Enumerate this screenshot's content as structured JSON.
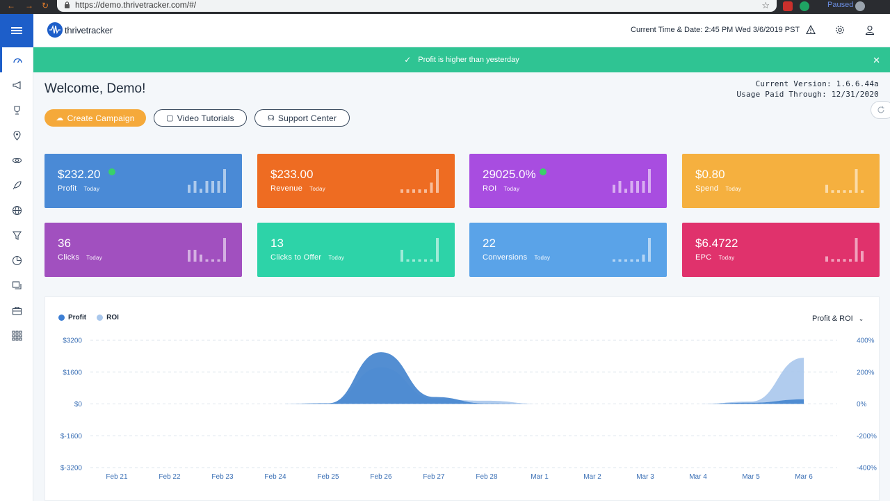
{
  "browser": {
    "url": "https://demo.thrivetracker.com/#/",
    "paused": "Paused"
  },
  "header": {
    "logo_text": "thrivetracker",
    "datetime": "Current Time & Date: 2:45 PM Wed 3/6/2019 PST"
  },
  "alert": {
    "message": "Profit is higher than yesterday"
  },
  "main": {
    "welcome": "Welcome, Demo!",
    "version": "Current Version: 1.6.6.44a",
    "usage": "Usage Paid Through: 12/31/2020",
    "buttons": {
      "create": "Create Campaign",
      "tutorials": "Video Tutorials",
      "support": "Support Center"
    }
  },
  "cards": [
    {
      "value": "$232.20",
      "label": "Profit",
      "period": "Today",
      "up": true,
      "color": "#4a8ad6",
      "spark": [
        2,
        3,
        1,
        3,
        3,
        3,
        6
      ]
    },
    {
      "value": "$233.00",
      "label": "Revenue",
      "period": "Today",
      "up": false,
      "color": "#ee6c22",
      "spark": [
        1,
        1,
        1,
        1,
        1,
        3,
        7
      ]
    },
    {
      "value": "29025.0%",
      "label": "ROI",
      "period": "Today",
      "up": true,
      "color": "#a84de0",
      "spark": [
        2,
        3,
        1,
        3,
        3,
        3,
        6
      ]
    },
    {
      "value": "$0.80",
      "label": "Spend",
      "period": "Today",
      "up": false,
      "color": "#f5b03f",
      "spark": [
        3,
        1,
        1,
        1,
        1,
        9,
        1
      ]
    },
    {
      "value": "36",
      "label": "Clicks",
      "period": "Today",
      "up": false,
      "color": "#a150bf",
      "spark": [
        5,
        5,
        3,
        1,
        1,
        1,
        10
      ]
    },
    {
      "value": "13",
      "label": "Clicks to Offer",
      "period": "Today",
      "up": false,
      "color": "#2dd3a8",
      "spark": [
        5,
        1,
        1,
        1,
        1,
        1,
        10
      ]
    },
    {
      "value": "22",
      "label": "Conversions",
      "period": "Today",
      "up": false,
      "color": "#5aa3e8",
      "spark": [
        1,
        1,
        1,
        1,
        1,
        3,
        10
      ]
    },
    {
      "value": "$6.4722",
      "label": "EPC",
      "period": "Today",
      "up": false,
      "color": "#e0326c",
      "spark": [
        2,
        1,
        1,
        1,
        1,
        9,
        4
      ]
    }
  ],
  "chart_data": {
    "type": "area",
    "dropdown": "Profit & ROI",
    "x": [
      "Feb 21",
      "Feb 22",
      "Feb 23",
      "Feb 24",
      "Feb 25",
      "Feb 26",
      "Feb 27",
      "Feb 28",
      "Mar 1",
      "Mar 2",
      "Mar 3",
      "Mar 4",
      "Mar 5",
      "Mar 6"
    ],
    "y_left_ticks": [
      "$3200",
      "$1600",
      "$0",
      "$-1600",
      "$-3200"
    ],
    "y_right_ticks": [
      "400%",
      "200%",
      "0%",
      "-200%",
      "-400%"
    ],
    "ylim_left": [
      -3200,
      3200
    ],
    "ylim_right": [
      -400,
      400
    ],
    "series": [
      {
        "name": "Profit",
        "axis": "left",
        "color": "#4a88d0",
        "values": [
          0,
          0,
          0,
          0,
          30,
          2600,
          350,
          20,
          0,
          0,
          0,
          0,
          60,
          230
        ]
      },
      {
        "name": "ROI",
        "axis": "right",
        "color": "#a9c7ec",
        "values": [
          0,
          0,
          0,
          0,
          5,
          230,
          30,
          20,
          0,
          0,
          0,
          0,
          15,
          290
        ]
      }
    ],
    "grid": true,
    "legend": "top-left"
  }
}
